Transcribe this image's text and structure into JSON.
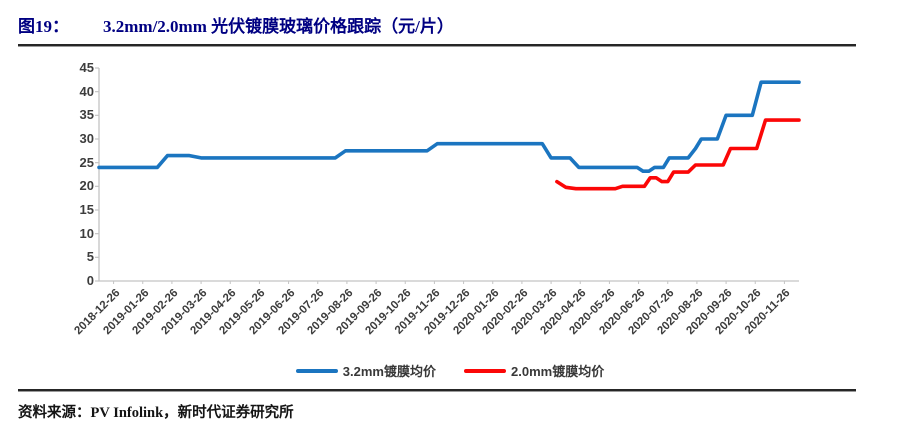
{
  "figure": {
    "label": "图19：",
    "title": "3.2mm/2.0mm 光伏镀膜玻璃价格跟踪（元/片）",
    "source": "资料来源：PV Infolink，新时代证券研究所"
  },
  "colors": {
    "title": "#000082",
    "axis_text": "#3d3d3d",
    "axis_line": "#c4c4c4",
    "series_blue": "#1b75c0",
    "series_red": "#fb0707"
  },
  "chart_data": {
    "type": "line",
    "title": "3.2mm/2.0mm 光伏镀膜玻璃价格跟踪（元/片）",
    "unit": "元/片",
    "ylim": [
      0,
      45
    ],
    "y_ticks": [
      0,
      5,
      10,
      15,
      20,
      25,
      30,
      35,
      40,
      45
    ],
    "grid": false,
    "legend_position": "bottom",
    "x_tick_labels": [
      "2018-12-26",
      "2019-01-26",
      "2019-02-26",
      "2019-03-26",
      "2019-04-26",
      "2019-05-26",
      "2019-06-26",
      "2019-07-26",
      "2019-08-26",
      "2019-09-26",
      "2019-10-26",
      "2019-11-26",
      "2019-12-26",
      "2020-01-26",
      "2020-02-26",
      "2020-03-26",
      "2020-04-26",
      "2020-05-26",
      "2020-06-26",
      "2020-07-26",
      "2020-08-26",
      "2020-09-26",
      "2020-10-26",
      "2020-11-26"
    ],
    "series": [
      {
        "name": "3.2mm镀膜均价",
        "color": "#1b75c0",
        "points": [
          [
            -0.5,
            24
          ],
          [
            1.5,
            24
          ],
          [
            1.85,
            26.5
          ],
          [
            2.6,
            26.5
          ],
          [
            3.0,
            26
          ],
          [
            7.6,
            26
          ],
          [
            7.95,
            27.5
          ],
          [
            10.75,
            27.5
          ],
          [
            11.1,
            29
          ],
          [
            14.7,
            29
          ],
          [
            15.0,
            26
          ],
          [
            15.65,
            26
          ],
          [
            15.95,
            24
          ],
          [
            17.95,
            24
          ],
          [
            18.15,
            23.2
          ],
          [
            18.35,
            23.2
          ],
          [
            18.55,
            24
          ],
          [
            18.85,
            24
          ],
          [
            19.05,
            26
          ],
          [
            19.7,
            26
          ],
          [
            19.95,
            28
          ],
          [
            20.15,
            30
          ],
          [
            20.7,
            30
          ],
          [
            21.0,
            35
          ],
          [
            21.9,
            35
          ],
          [
            22.2,
            42
          ],
          [
            23.5,
            42
          ]
        ]
      },
      {
        "name": "2.0mm镀膜均价",
        "color": "#fb0707",
        "points": [
          [
            15.2,
            21
          ],
          [
            15.5,
            19.8
          ],
          [
            15.85,
            19.5
          ],
          [
            17.2,
            19.5
          ],
          [
            17.45,
            20
          ],
          [
            18.2,
            20
          ],
          [
            18.4,
            21.8
          ],
          [
            18.6,
            21.8
          ],
          [
            18.8,
            21
          ],
          [
            19.0,
            21
          ],
          [
            19.2,
            23
          ],
          [
            19.7,
            23
          ],
          [
            19.95,
            24.5
          ],
          [
            20.9,
            24.5
          ],
          [
            21.15,
            28
          ],
          [
            22.05,
            28
          ],
          [
            22.35,
            34
          ],
          [
            23.5,
            34
          ]
        ]
      }
    ]
  }
}
